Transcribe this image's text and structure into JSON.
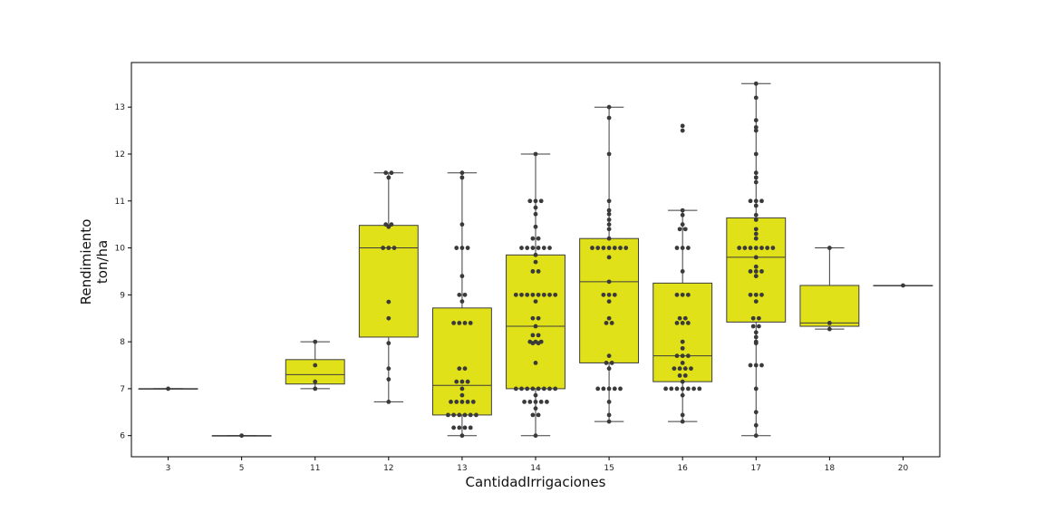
{
  "chart_data": {
    "type": "boxplot",
    "title": "",
    "xlabel": "CantidadIrrigaciones",
    "ylabel_line1": "Rendimiento",
    "ylabel_line2": "ton/ha",
    "ylim": [
      5.55,
      13.95
    ],
    "yticks": [
      6,
      7,
      8,
      9,
      10,
      11,
      12,
      13
    ],
    "grid": false,
    "legend": "none",
    "box_color": "#e1e11a",
    "line_color": "#3d3d3d",
    "point_color": "#3a3a3a",
    "categories": [
      "3",
      "5",
      "11",
      "12",
      "13",
      "14",
      "15",
      "16",
      "17",
      "18",
      "20"
    ],
    "boxes": [
      {
        "category": "3",
        "whisker_low": 7.0,
        "q1": 7.0,
        "median": 7.0,
        "q3": 7.0,
        "whisker_high": 7.0,
        "outliers": []
      },
      {
        "category": "5",
        "whisker_low": 6.0,
        "q1": 6.0,
        "median": 6.0,
        "q3": 6.0,
        "whisker_high": 6.0,
        "outliers": []
      },
      {
        "category": "11",
        "whisker_low": 7.0,
        "q1": 7.1,
        "median": 7.3,
        "q3": 7.62,
        "whisker_high": 8.0,
        "outliers": []
      },
      {
        "category": "12",
        "whisker_low": 6.72,
        "q1": 8.1,
        "median": 10.0,
        "q3": 10.48,
        "whisker_high": 11.6,
        "outliers": []
      },
      {
        "category": "13",
        "whisker_low": 6.0,
        "q1": 6.44,
        "median": 7.07,
        "q3": 8.72,
        "whisker_high": 11.6,
        "outliers": []
      },
      {
        "category": "14",
        "whisker_low": 6.0,
        "q1": 7.0,
        "median": 8.33,
        "q3": 9.85,
        "whisker_high": 12.0,
        "outliers": []
      },
      {
        "category": "15",
        "whisker_low": 6.3,
        "q1": 7.55,
        "median": 9.28,
        "q3": 10.2,
        "whisker_high": 13.0,
        "outliers": []
      },
      {
        "category": "16",
        "whisker_low": 6.3,
        "q1": 7.15,
        "median": 7.7,
        "q3": 9.25,
        "whisker_high": 10.8,
        "outliers": [
          12.5,
          12.6
        ]
      },
      {
        "category": "17",
        "whisker_low": 6.0,
        "q1": 8.42,
        "median": 9.8,
        "q3": 10.64,
        "whisker_high": 13.5,
        "outliers": []
      },
      {
        "category": "18",
        "whisker_low": 8.27,
        "q1": 8.33,
        "median": 8.4,
        "q3": 9.2,
        "whisker_high": 10.0,
        "outliers": []
      },
      {
        "category": "20",
        "whisker_low": 9.2,
        "q1": 9.2,
        "median": 9.2,
        "q3": 9.2,
        "whisker_high": 9.2,
        "outliers": []
      }
    ],
    "swarm": [
      {
        "category": "3",
        "values": [
          7.0
        ]
      },
      {
        "category": "5",
        "values": [
          6.0
        ]
      },
      {
        "category": "11",
        "values": [
          7.0,
          7.15,
          7.5,
          8.0
        ]
      },
      {
        "category": "12",
        "values": [
          6.72,
          7.2,
          7.43,
          7.97,
          8.5,
          8.85,
          10.0,
          10.0,
          10.0,
          10.45,
          10.5,
          10.5,
          11.5,
          11.6,
          11.6
        ]
      },
      {
        "category": "13",
        "values": [
          6.0,
          6.17,
          6.17,
          6.17,
          6.17,
          6.44,
          6.44,
          6.44,
          6.44,
          6.44,
          6.44,
          6.72,
          6.72,
          6.72,
          6.72,
          6.72,
          6.86,
          7.0,
          7.15,
          7.15,
          7.15,
          7.43,
          7.43,
          8.4,
          8.4,
          8.4,
          8.4,
          8.86,
          9.0,
          9.0,
          9.4,
          10.0,
          10.0,
          10.0,
          10.5,
          11.5,
          11.6
        ]
      },
      {
        "category": "14",
        "values": [
          6.0,
          6.44,
          6.44,
          6.58,
          6.72,
          6.72,
          6.72,
          6.72,
          6.72,
          6.86,
          7.0,
          7.0,
          7.0,
          7.0,
          7.0,
          7.0,
          7.0,
          7.0,
          7.55,
          7.97,
          7.97,
          8.0,
          8.0,
          8.0,
          8.14,
          8.14,
          8.33,
          8.5,
          8.5,
          8.86,
          9.0,
          9.0,
          9.0,
          9.0,
          9.0,
          9.0,
          9.0,
          9.0,
          9.5,
          9.5,
          9.7,
          9.85,
          10.0,
          10.0,
          10.0,
          10.0,
          10.0,
          10.0,
          10.2,
          10.2,
          10.45,
          10.72,
          10.86,
          11.0,
          11.0,
          11.0,
          12.0
        ]
      },
      {
        "category": "15",
        "values": [
          6.3,
          6.44,
          6.72,
          7.0,
          7.0,
          7.0,
          7.0,
          7.0,
          7.43,
          7.55,
          7.55,
          7.7,
          8.4,
          8.4,
          8.5,
          8.86,
          9.0,
          9.0,
          9.0,
          9.28,
          9.8,
          10.0,
          10.0,
          10.0,
          10.0,
          10.0,
          10.0,
          10.0,
          10.2,
          10.4,
          10.5,
          10.6,
          10.72,
          10.8,
          11.0,
          12.0,
          12.77,
          13.0
        ]
      },
      {
        "category": "16",
        "values": [
          6.3,
          6.44,
          6.86,
          7.0,
          7.0,
          7.0,
          7.0,
          7.0,
          7.0,
          7.0,
          7.15,
          7.28,
          7.28,
          7.43,
          7.43,
          7.43,
          7.43,
          7.55,
          7.7,
          7.7,
          7.7,
          7.86,
          8.0,
          8.4,
          8.4,
          8.4,
          8.5,
          8.5,
          9.0,
          9.0,
          9.0,
          9.5,
          10.0,
          10.0,
          10.0,
          10.4,
          10.4,
          10.5,
          10.7,
          10.8,
          12.5,
          12.6
        ]
      },
      {
        "category": "17",
        "values": [
          6.0,
          6.22,
          6.5,
          7.0,
          7.5,
          7.5,
          7.5,
          7.97,
          8.0,
          8.1,
          8.2,
          8.33,
          8.33,
          8.5,
          8.5,
          8.86,
          9.0,
          9.0,
          9.0,
          9.4,
          9.5,
          9.5,
          9.5,
          9.6,
          9.8,
          10.0,
          10.0,
          10.0,
          10.0,
          10.0,
          10.0,
          10.0,
          10.2,
          10.3,
          10.4,
          10.6,
          10.7,
          10.9,
          11.0,
          11.0,
          11.0,
          11.4,
          11.5,
          11.6,
          12.0,
          12.5,
          12.57,
          12.72,
          13.2,
          13.5
        ]
      },
      {
        "category": "18",
        "values": [
          8.27,
          8.4,
          10.0
        ]
      },
      {
        "category": "20",
        "values": [
          9.2
        ]
      }
    ]
  }
}
